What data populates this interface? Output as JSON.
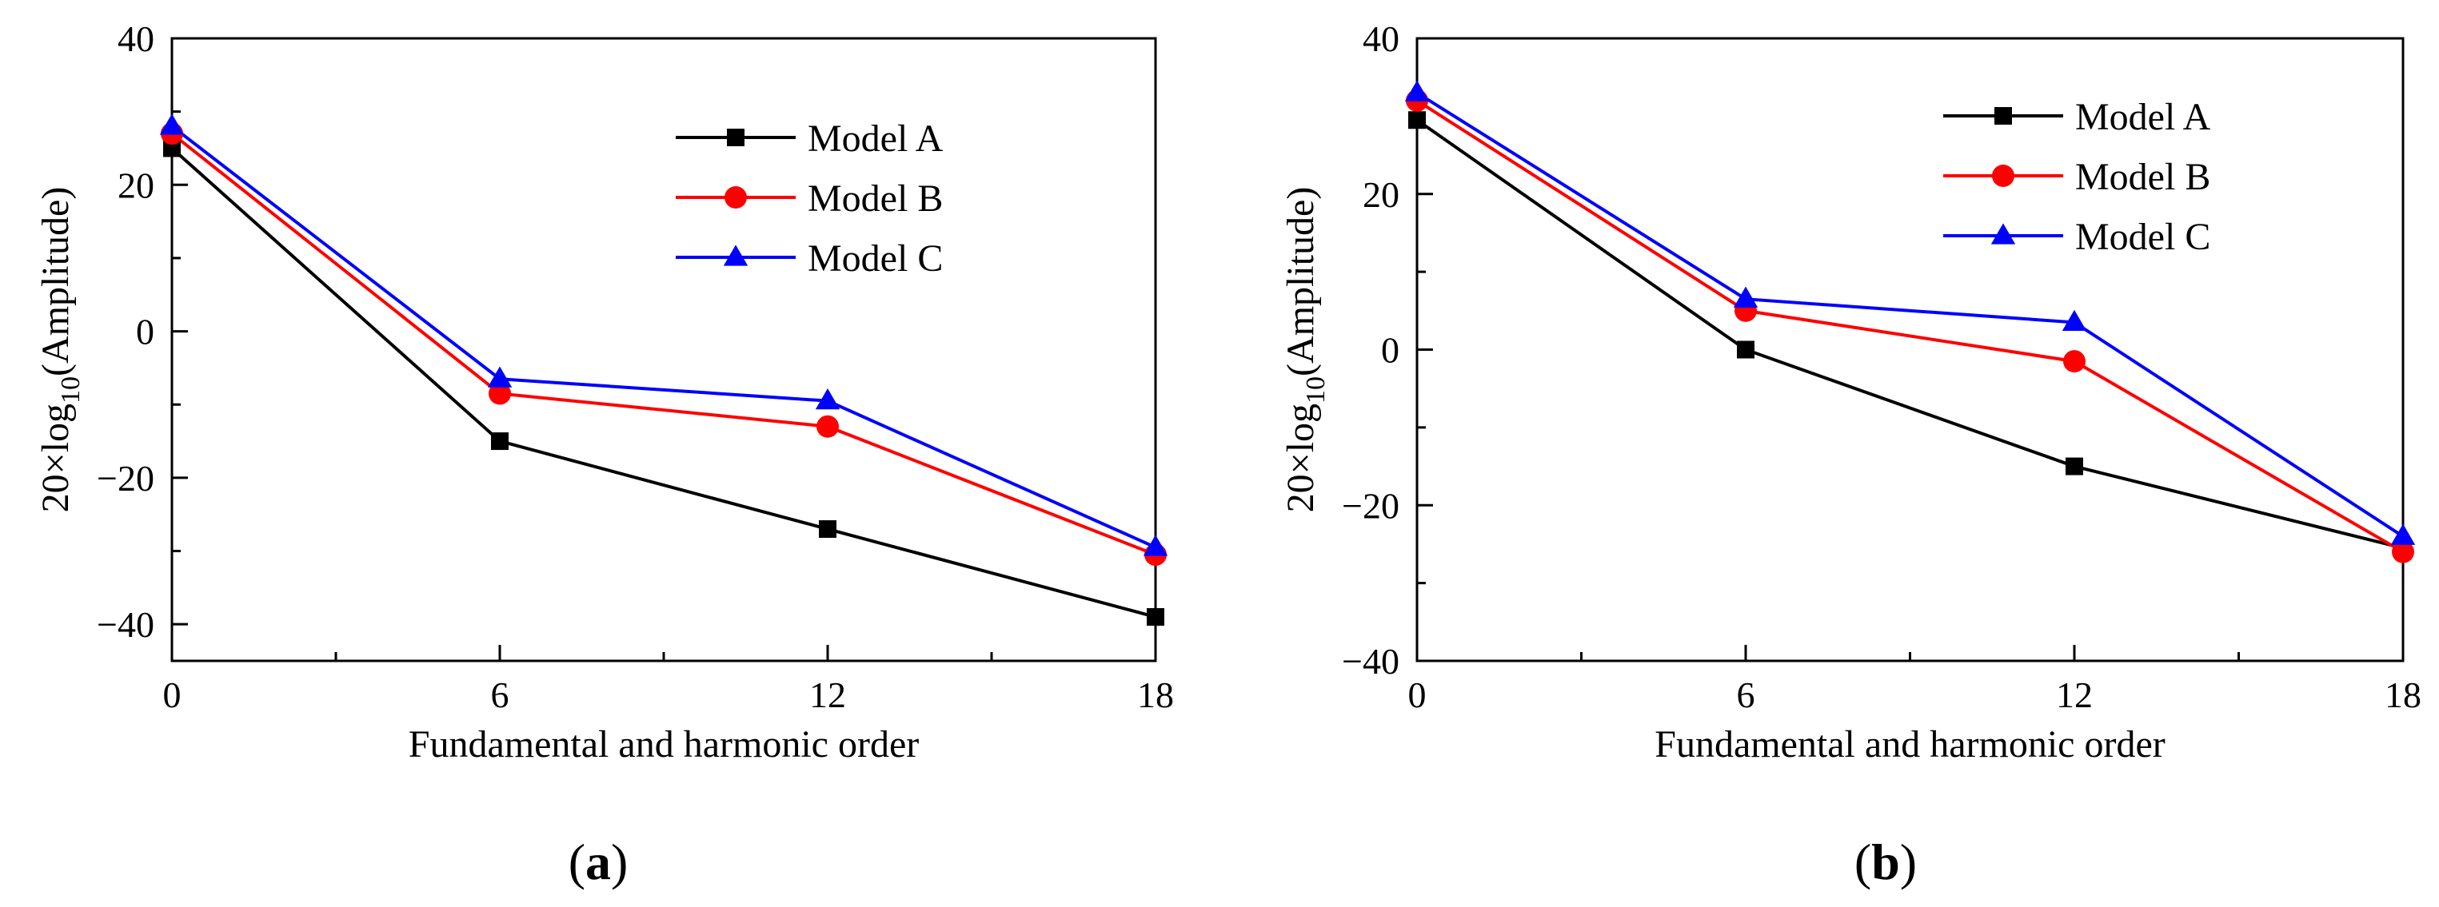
{
  "chart_data": [
    {
      "type": "line",
      "panel_label": "a",
      "xlabel": "Fundamental and harmonic order",
      "ylabel_prefix": "20×log",
      "ylabel_sub": "10",
      "ylabel_suffix": "(Amplitude)",
      "x": [
        0,
        6,
        12,
        18
      ],
      "xlim": [
        0,
        18
      ],
      "ylim": [
        -45,
        40
      ],
      "xticks": [
        0,
        6,
        12,
        18
      ],
      "yticks": [
        40,
        20,
        0,
        -20,
        -40
      ],
      "ytick_labels": [
        "40",
        "20",
        "0",
        "−20",
        "−40"
      ],
      "legend_position": "top-right",
      "grid": false,
      "series": [
        {
          "name": "Model A",
          "color": "#000000",
          "marker": "square",
          "values": [
            25,
            -15,
            -27,
            -39
          ]
        },
        {
          "name": "Model B",
          "color": "#ff0000",
          "marker": "circle",
          "values": [
            27,
            -8.5,
            -13,
            -30.5
          ]
        },
        {
          "name": "Model C",
          "color": "#0000ff",
          "marker": "triangle",
          "values": [
            28,
            -6.5,
            -9.5,
            -29.5
          ]
        }
      ]
    },
    {
      "type": "line",
      "panel_label": "b",
      "xlabel": "Fundamental and harmonic order",
      "ylabel_prefix": "20×log",
      "ylabel_sub": "10",
      "ylabel_suffix": "(Amplitude)",
      "x": [
        0,
        6,
        12,
        18
      ],
      "xlim": [
        0,
        18
      ],
      "ylim": [
        -40,
        40
      ],
      "xticks": [
        0,
        6,
        12,
        18
      ],
      "yticks": [
        40,
        20,
        0,
        -20,
        -40
      ],
      "ytick_labels": [
        "40",
        "20",
        "0",
        "−20",
        "−40"
      ],
      "legend_position": "top-right",
      "grid": false,
      "series": [
        {
          "name": "Model A",
          "color": "#000000",
          "marker": "square",
          "values": [
            29.5,
            0,
            -15,
            -25.5
          ]
        },
        {
          "name": "Model B",
          "color": "#ff0000",
          "marker": "circle",
          "values": [
            32,
            5,
            -1.5,
            -26
          ]
        },
        {
          "name": "Model C",
          "color": "#0000ff",
          "marker": "triangle",
          "values": [
            33,
            6.5,
            3.5,
            -24
          ]
        }
      ]
    }
  ]
}
